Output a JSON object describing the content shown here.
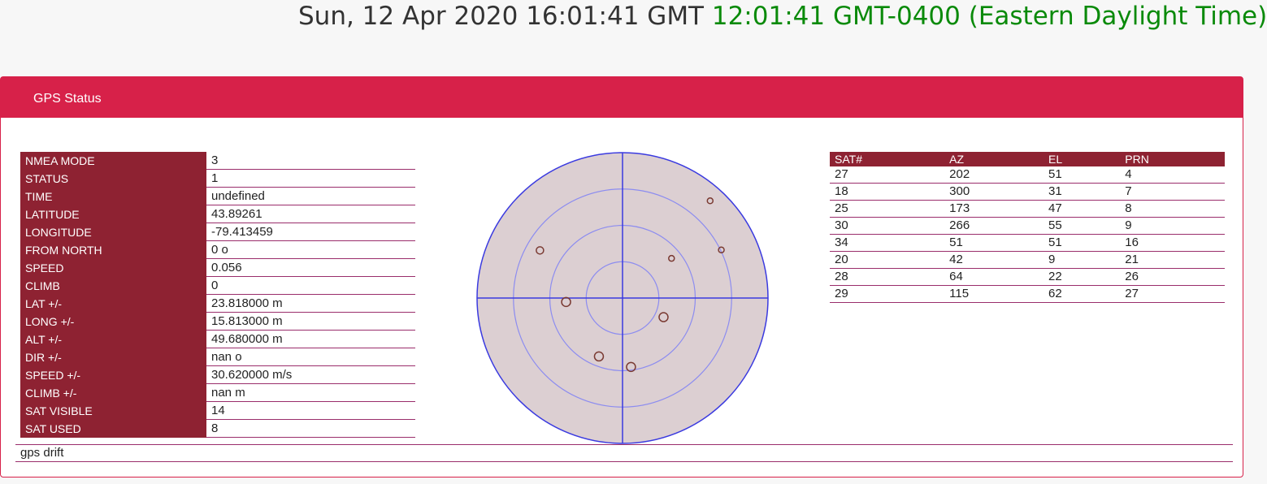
{
  "clock": {
    "utc": "Sun, 12 Apr 2020 16:01:41 GMT",
    "local": "12:01:41 GMT-0400 (Eastern Daylight Time)"
  },
  "panel": {
    "title": "GPS Status"
  },
  "status_rows": [
    {
      "label": "NMEA MODE",
      "value": "3"
    },
    {
      "label": "STATUS",
      "value": "1"
    },
    {
      "label": "TIME",
      "value": "undefined"
    },
    {
      "label": "LATITUDE",
      "value": "43.89261"
    },
    {
      "label": "LONGITUDE",
      "value": "-79.413459"
    },
    {
      "label": "FROM NORTH",
      "value": "0 o"
    },
    {
      "label": "SPEED",
      "value": "0.056"
    },
    {
      "label": "CLIMB",
      "value": "0"
    },
    {
      "label": "LAT +/-",
      "value": "23.818000 m"
    },
    {
      "label": "LONG +/-",
      "value": "15.813000 m"
    },
    {
      "label": "ALT +/-",
      "value": "49.680000 m"
    },
    {
      "label": "DIR +/-",
      "value": "nan o"
    },
    {
      "label": "SPEED +/-",
      "value": "30.620000 m/s"
    },
    {
      "label": "CLIMB +/-",
      "value": "nan m"
    },
    {
      "label": "SAT VISIBLE",
      "value": "14"
    },
    {
      "label": "SAT USED",
      "value": "8"
    }
  ],
  "satellite_table": {
    "headers": [
      "SAT#",
      "AZ",
      "EL",
      "PRN"
    ],
    "rows": [
      [
        "27",
        "202",
        "51",
        "4"
      ],
      [
        "18",
        "300",
        "31",
        "7"
      ],
      [
        "25",
        "173",
        "47",
        "8"
      ],
      [
        "30",
        "266",
        "55",
        "9"
      ],
      [
        "34",
        "51",
        "51",
        "16"
      ],
      [
        "20",
        "42",
        "9",
        "21"
      ],
      [
        "28",
        "64",
        "22",
        "26"
      ],
      [
        "29",
        "115",
        "62",
        "27"
      ]
    ]
  },
  "skyplot": {
    "fill_color": "#dccfd2",
    "outline_color": "#3a3ae0",
    "ring_color": "#8c8cf0",
    "sat_color": "#7a3a32",
    "satellites": [
      {
        "az": 202,
        "el": 51,
        "snr": 3
      },
      {
        "az": 300,
        "el": 31,
        "snr": 2
      },
      {
        "az": 173,
        "el": 47,
        "snr": 3
      },
      {
        "az": 266,
        "el": 55,
        "snr": 3
      },
      {
        "az": 51,
        "el": 51,
        "snr": 1
      },
      {
        "az": 42,
        "el": 9,
        "snr": 1
      },
      {
        "az": 64,
        "el": 22,
        "snr": 1
      },
      {
        "az": 115,
        "el": 62,
        "snr": 3
      }
    ]
  },
  "drift": {
    "label": "gps drift"
  },
  "colors": {
    "header_bar": "#d72149",
    "label_cell": "#8e2232",
    "local_time": "#0a8a0a"
  }
}
